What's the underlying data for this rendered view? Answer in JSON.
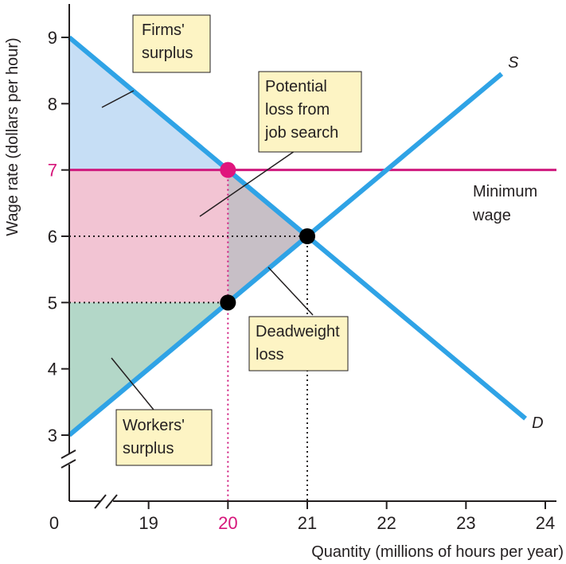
{
  "chart_data": {
    "type": "line",
    "xlabel": "Quantity (millions of hours per year)",
    "ylabel": "Wage rate (dollars per hour)",
    "x_ticks": [
      "19",
      "20",
      "21",
      "22",
      "23",
      "24"
    ],
    "y_ticks": [
      "3",
      "4",
      "5",
      "6",
      "7",
      "8",
      "9"
    ],
    "origin_label": "0",
    "xlim": [
      18,
      24
    ],
    "ylim": [
      3,
      9
    ],
    "highlight_tick": {
      "x": "20",
      "y": "7"
    },
    "series": [
      {
        "name": "S",
        "x": [
          18,
          23.45
        ],
        "y": [
          3,
          8.45
        ],
        "color": "#2fa3e6"
      },
      {
        "name": "D",
        "x": [
          18,
          23.75
        ],
        "y": [
          9,
          3.25
        ],
        "color": "#2fa3e6"
      }
    ],
    "minimum_wage": {
      "label": "Minimum wage",
      "label_lines": [
        "Minimum",
        "wage"
      ],
      "y": 7,
      "color": "#cf1a7e"
    },
    "points": [
      {
        "x": 20,
        "y": 7,
        "color": "#e0157d"
      },
      {
        "x": 21,
        "y": 6,
        "color": "#000000"
      },
      {
        "x": 20,
        "y": 5,
        "color": "#000000"
      }
    ],
    "regions": [
      {
        "name": "Firms' surplus",
        "color": "#c6def5"
      },
      {
        "name": "Potential loss from job search",
        "color": "#f2c4d3"
      },
      {
        "name": "Deadweight loss",
        "color": "#c7bfc6"
      },
      {
        "name": "Workers' surplus",
        "color": "#b3d7c8"
      }
    ],
    "annotations": [
      {
        "label": "Firms' surplus",
        "lines": [
          "Firms'",
          "surplus"
        ]
      },
      {
        "label": "Potential loss from job search",
        "lines": [
          "Potential",
          "loss from",
          "job search"
        ]
      },
      {
        "label": "Deadweight loss",
        "lines": [
          "Deadweight",
          "loss"
        ]
      },
      {
        "label": "Workers' surplus",
        "lines": [
          "Workers'",
          "surplus"
        ]
      }
    ]
  }
}
